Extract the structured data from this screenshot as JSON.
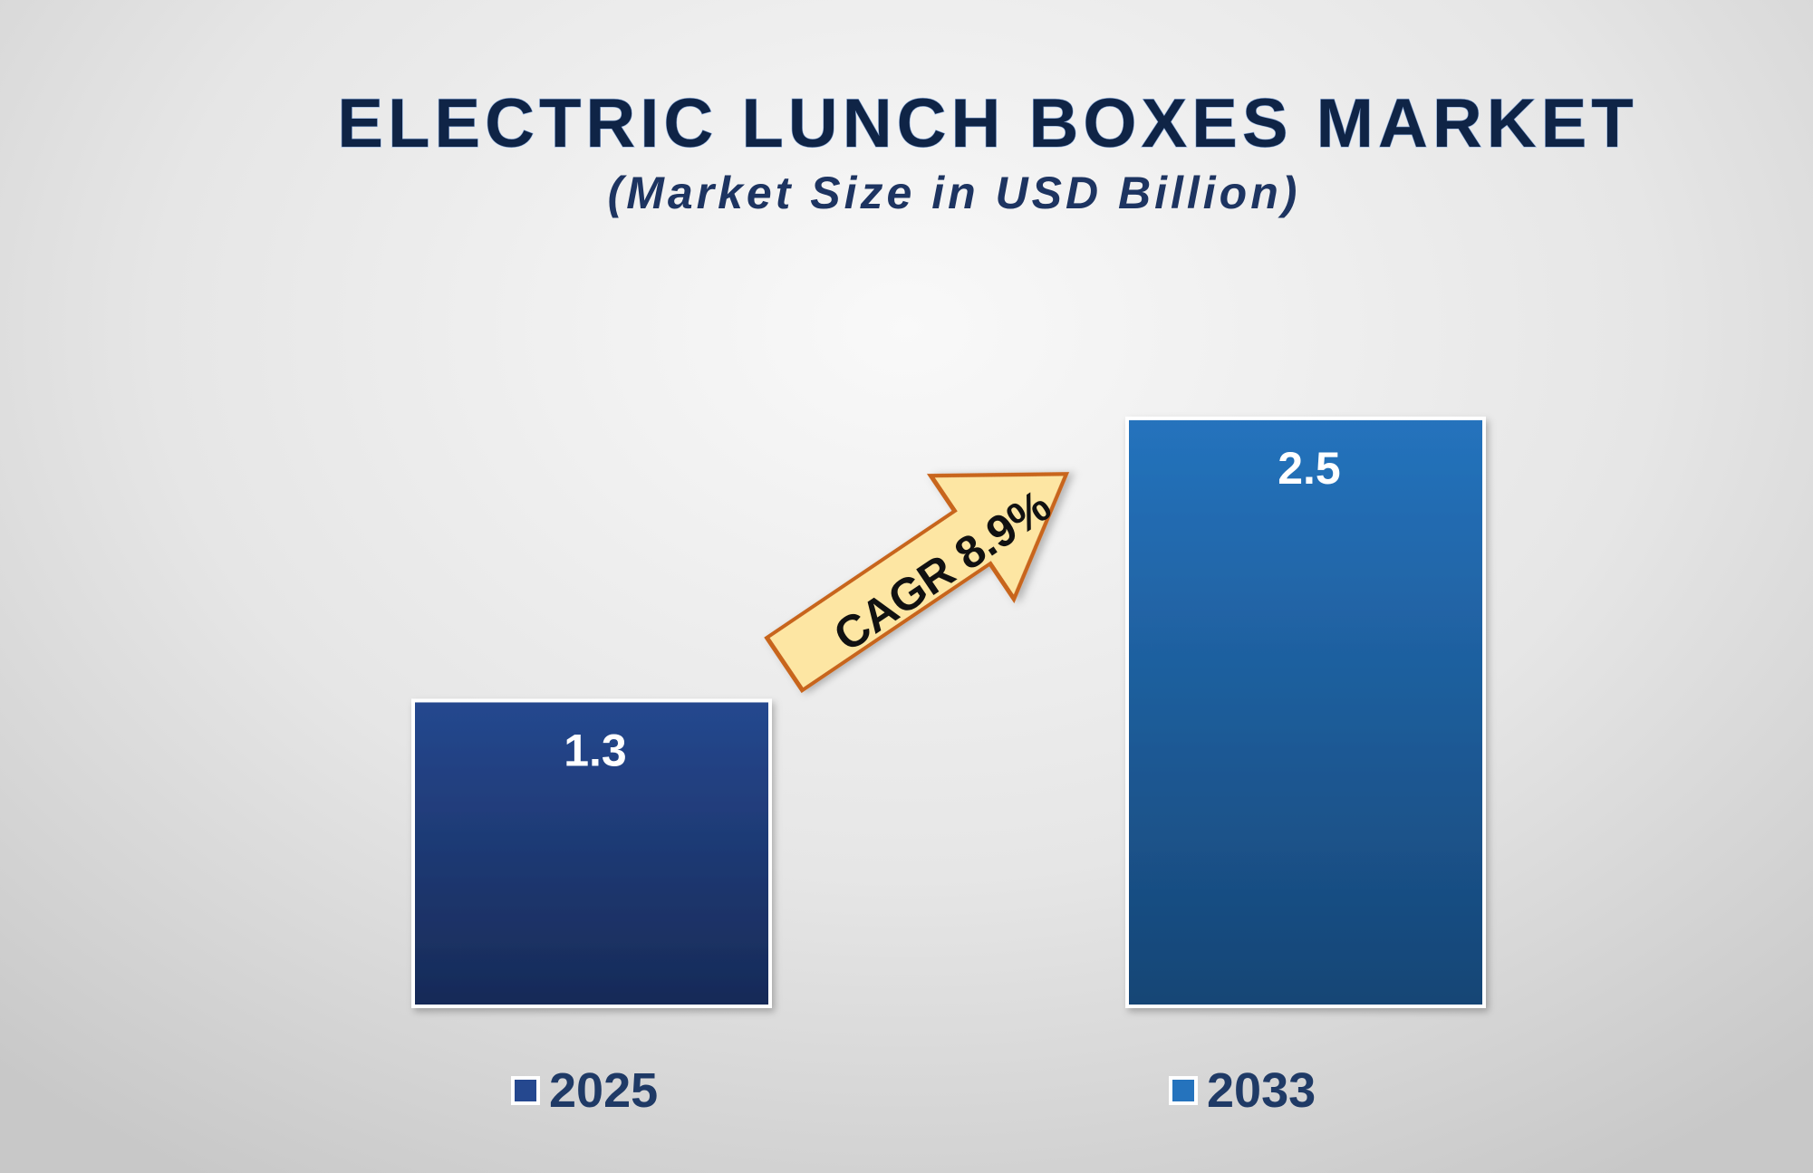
{
  "chart_data": {
    "type": "bar",
    "title": "ELECTRIC LUNCH BOXES MARKET",
    "subtitle": "(Market Size in USD Billion)",
    "categories": [
      "2025",
      "2033"
    ],
    "values": [
      1.3,
      2.5
    ],
    "value_labels": [
      "1.3",
      "2.5"
    ],
    "ylim": [
      0,
      2.8
    ],
    "grid": false,
    "legend_position": "bottom",
    "legend": [
      "2025",
      "2033"
    ],
    "annotation": "CAGR 8.9%",
    "colors": {
      "bar_2025_top": "#25488f",
      "bar_2025_bottom": "#172a57",
      "bar_2033_top": "#2573bd",
      "bar_2033_bottom": "#164575",
      "arrow_fill": "#fde6a3",
      "arrow_stroke": "#c8651e",
      "legend_text": "#1f3a66"
    }
  }
}
